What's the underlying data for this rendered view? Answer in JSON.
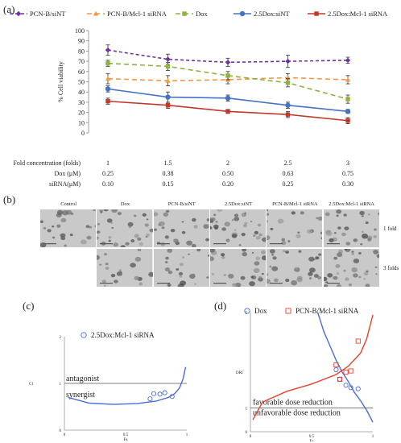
{
  "panel_labels": {
    "a": "(a)",
    "b": "(b)",
    "c": "(c)",
    "d": "(d)"
  },
  "colors": {
    "pcnb_sint": "#7030a0",
    "pcnb_mcl1": "#f79646",
    "dox": "#8db33f",
    "dox_sint": "#4472c4",
    "dox_mcl1": "#c0392b",
    "curve_blue": "#4a6cd8",
    "curve_red": "#e8412d"
  },
  "chart_data": [
    {
      "id": "a",
      "type": "line",
      "ylabel": "% Cell viability",
      "ylim": [
        0,
        100
      ],
      "yticks": [
        0,
        10,
        20,
        30,
        40,
        50,
        60,
        70,
        80,
        90,
        100
      ],
      "grid": false,
      "legend_position": "top",
      "x": [
        1,
        1.5,
        2,
        2.5,
        3
      ],
      "series": [
        {
          "name": "PCN-B/siNT",
          "values": [
            81,
            72,
            69,
            70,
            71
          ],
          "errors": [
            5,
            5,
            4,
            6,
            3
          ],
          "color": "#7030a0",
          "dash": "4 3",
          "marker": "diamond"
        },
        {
          "name": "PCN-B/Mcl-1  siRNA",
          "values": [
            53,
            51,
            52,
            54,
            52
          ],
          "errors": [
            5,
            5,
            4,
            4,
            4
          ],
          "color": "#f79646",
          "dash": "6 4",
          "marker": "triangle"
        },
        {
          "name": "Dox",
          "values": [
            68,
            65,
            56,
            49,
            33
          ],
          "errors": [
            3,
            4,
            4,
            4,
            4
          ],
          "color": "#8db33f",
          "dash": "6 4",
          "marker": "square"
        },
        {
          "name": "2.5Dox:siNT",
          "values": [
            43,
            35,
            34,
            27,
            21
          ],
          "errors": [
            3,
            5,
            3,
            3,
            2
          ],
          "color": "#4472c4",
          "dash": "",
          "marker": "circle"
        },
        {
          "name": "2.5Dox:Mcl-1 siRNA",
          "values": [
            31,
            27,
            21,
            18,
            12
          ],
          "errors": [
            3,
            3,
            2,
            3,
            3
          ],
          "color": "#c0392b",
          "dash": "",
          "marker": "square"
        }
      ],
      "table": {
        "rows": [
          {
            "label": "Fold concentration (folds)",
            "values": [
              "1",
              "1.5",
              "2",
              "2.5",
              "3"
            ]
          },
          {
            "label": "Dox (μM)",
            "values": [
              "0.25",
              "0.38",
              "0.50",
              "0.63",
              "0.75"
            ]
          },
          {
            "label": "siRNA(μM)",
            "values": [
              "0.10",
              "0.15",
              "0.20",
              "0.25",
              "0.30"
            ]
          }
        ]
      }
    },
    {
      "id": "c",
      "type": "scatter",
      "xlabel": "Fa",
      "ylabel": "CI",
      "xlim": [
        0,
        1
      ],
      "ylim": [
        0,
        2
      ],
      "xticks": [
        "0",
        "0.5",
        "1"
      ],
      "yticks": [
        "0",
        "1",
        "2"
      ],
      "legend_position": "top-left",
      "series": [
        {
          "name": "2.5Dox:Mcl-1  siRNA",
          "marker": "circle",
          "color": "#4a6cd8",
          "points": [
            [
              0.7,
              0.67
            ],
            [
              0.73,
              0.78
            ],
            [
              0.78,
              0.77
            ],
            [
              0.82,
              0.8
            ],
            [
              0.88,
              0.72
            ]
          ]
        }
      ],
      "curve": [
        [
          0.03,
          0.7
        ],
        [
          0.2,
          0.58
        ],
        [
          0.4,
          0.55
        ],
        [
          0.6,
          0.57
        ],
        [
          0.75,
          0.62
        ],
        [
          0.85,
          0.7
        ],
        [
          0.9,
          0.78
        ],
        [
          0.94,
          0.9
        ],
        [
          0.97,
          1.1
        ],
        [
          0.99,
          1.35
        ]
      ],
      "reference_line": 1,
      "annotations": [
        "antagonist",
        "synergist"
      ]
    },
    {
      "id": "d",
      "type": "scatter",
      "xlabel": "Fa",
      "ylabel": "DRI",
      "xlim": [
        0,
        1
      ],
      "ylim": [
        0,
        5
      ],
      "xticks": [
        "0",
        "0.5",
        "1"
      ],
      "yticks": [
        "0",
        "1",
        "5"
      ],
      "legend_position": "top",
      "series": [
        {
          "name": "Dox",
          "marker": "circle",
          "color": "#4a6cd8",
          "points": [
            [
              0.7,
              2.6
            ],
            [
              0.73,
              2.2
            ],
            [
              0.78,
              1.95
            ],
            [
              0.82,
              1.85
            ],
            [
              0.88,
              1.8
            ]
          ]
        },
        {
          "name": "PCN-B/Mcl-1  siRNA",
          "marker": "square",
          "color": "#e8412d",
          "points": [
            [
              0.7,
              2.8
            ],
            [
              0.73,
              2.2
            ],
            [
              0.78,
              2.5
            ],
            [
              0.82,
              2.55
            ],
            [
              0.88,
              3.8
            ]
          ]
        }
      ],
      "curve_blue": [
        [
          0.55,
          5
        ],
        [
          0.6,
          4.2
        ],
        [
          0.65,
          3.6
        ],
        [
          0.7,
          3.0
        ],
        [
          0.75,
          2.5
        ],
        [
          0.8,
          2.1
        ],
        [
          0.85,
          1.65
        ],
        [
          0.9,
          1.3
        ],
        [
          0.95,
          0.9
        ],
        [
          1.0,
          0.4
        ]
      ],
      "curve_red": [
        [
          0.02,
          0.5
        ],
        [
          0.1,
          1.25
        ],
        [
          0.3,
          1.7
        ],
        [
          0.5,
          2.0
        ],
        [
          0.7,
          2.4
        ],
        [
          0.8,
          2.75
        ],
        [
          0.9,
          3.3
        ],
        [
          0.95,
          3.9
        ],
        [
          0.98,
          4.5
        ],
        [
          1.0,
          4.9
        ]
      ],
      "reference_line": 1,
      "annotations": [
        "favorable dose reduction",
        "unfavorable dose reduction"
      ]
    }
  ],
  "micrographs": {
    "columns": [
      "Control",
      "Dox",
      "PCN-B/siNT",
      "2.5Dox:siNT",
      "PCN-B/Mcl-1  siRNA",
      "2.5Dox:Mcl-1 siRNA"
    ],
    "rows": [
      "1 fold",
      "3 folds"
    ]
  }
}
